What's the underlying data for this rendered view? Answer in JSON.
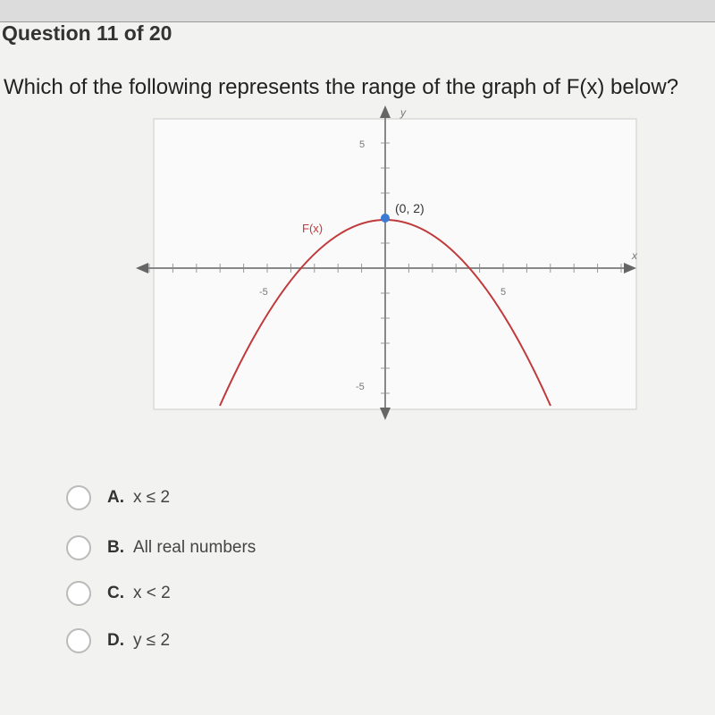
{
  "header": {
    "title": "Question 11 of 20"
  },
  "question": {
    "text": "Which of the following represents the range of the graph of F(x) below?"
  },
  "graph": {
    "x_label": "x",
    "y_label": "y",
    "function_label": "F(x)",
    "point_label": "(0, 2)",
    "tick_labels": {
      "y_top": "5",
      "y_bottom": "-5",
      "x_left": "-5",
      "x_right": "5"
    }
  },
  "choices": [
    {
      "letter": "A.",
      "text": "x ≤ 2"
    },
    {
      "letter": "B.",
      "text": "All real numbers"
    },
    {
      "letter": "C.",
      "text": "x < 2"
    },
    {
      "letter": "D.",
      "text": "y ≤ 2"
    }
  ]
}
